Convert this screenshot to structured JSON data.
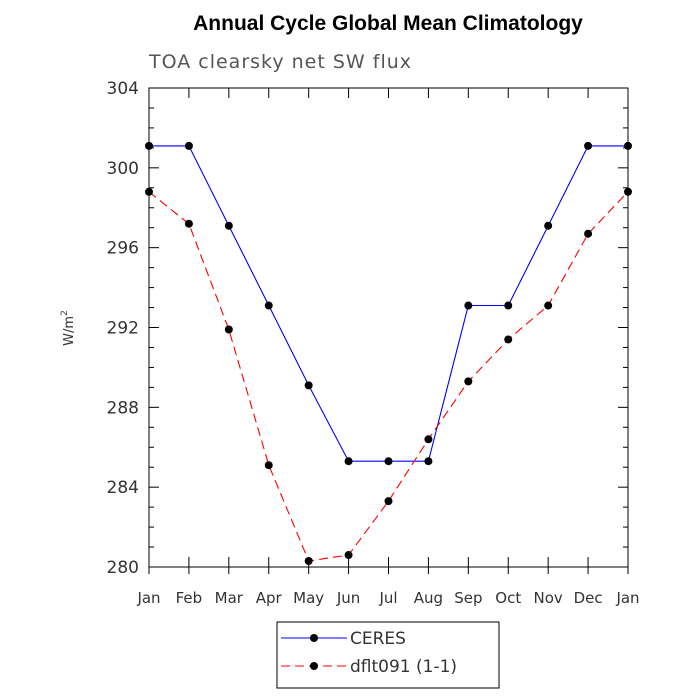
{
  "chart_data": {
    "type": "line",
    "title": "Annual Cycle Global Mean Climatology",
    "subtitle": "TOA clearsky net SW flux",
    "xlabel": "",
    "ylabel_base": "W/m",
    "ylabel_sup": "2",
    "ylim": [
      280,
      304
    ],
    "yticks": [
      "280",
      "284",
      "288",
      "292",
      "296",
      "300",
      "304"
    ],
    "categories": [
      "Jan",
      "Feb",
      "Mar",
      "Apr",
      "May",
      "Jun",
      "Jul",
      "Aug",
      "Sep",
      "Oct",
      "Nov",
      "Dec",
      "Jan"
    ],
    "series": [
      {
        "name": "CERES",
        "color": "#0000ff",
        "dash": "solid",
        "values": [
          301.1,
          301.1,
          297.1,
          293.1,
          289.1,
          285.3,
          285.3,
          285.3,
          293.1,
          293.1,
          297.1,
          301.1,
          301.1
        ]
      },
      {
        "name": "dflt091 (1-1)",
        "color": "#ff0000",
        "dash": "dashed",
        "values": [
          298.8,
          297.2,
          291.9,
          285.1,
          280.3,
          280.6,
          283.3,
          286.4,
          289.3,
          291.4,
          293.1,
          296.7,
          298.8
        ]
      }
    ],
    "legend_position": "bottom"
  }
}
